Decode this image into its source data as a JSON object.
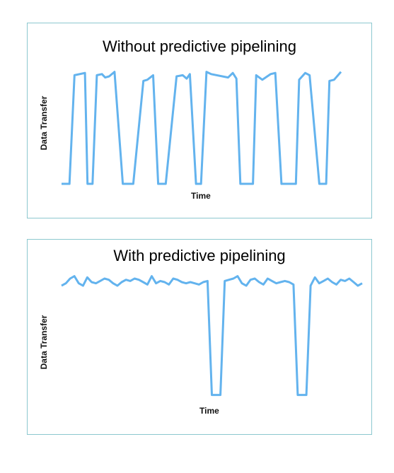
{
  "colors": {
    "line": "#63b3ee",
    "frame": "#8cc8cf"
  },
  "chart_data": [
    {
      "type": "line",
      "title": "Without predictive pipelining",
      "xlabel": "Time",
      "ylabel": "Data Transfer",
      "ylim": [
        0,
        1
      ],
      "grid": false,
      "series": [
        {
          "x": [
            0,
            2.2,
            3.6,
            6.5,
            7.2,
            8.6,
            9.8,
            11.2,
            12.1,
            13.2,
            14.7,
            17.0,
            17.9,
            19.9,
            22.7,
            23.8,
            25.4,
            26.8,
            28.2,
            28.9,
            31.9,
            33.6,
            34.7,
            35.6,
            37.3,
            38.7,
            40.2,
            41.5,
            46.2,
            47.5,
            48.5,
            49.6,
            50.7,
            53.1,
            54.0,
            55.7,
            58.0,
            59.3,
            61.0,
            62.2,
            65.0,
            65.9,
            67.6,
            68.8,
            71.5,
            72.3,
            73.4,
            74.3,
            75.6,
            77.5
          ],
          "y": [
            0,
            0,
            0.96,
            0.98,
            0,
            0,
            0.96,
            0.97,
            0.94,
            0.95,
            0.99,
            0,
            0,
            0,
            0.91,
            0.92,
            0.96,
            0,
            0,
            0,
            0.95,
            0.96,
            0.93,
            0.97,
            0,
            0,
            0.99,
            0.97,
            0.94,
            0.98,
            0.93,
            0,
            0,
            0,
            0.96,
            0.92,
            0.97,
            0.98,
            0,
            0,
            0,
            0.92,
            0.98,
            0.96,
            0,
            0,
            0,
            0.91,
            0.92,
            0.99
          ]
        }
      ]
    },
    {
      "type": "line",
      "title": "With predictive pipelining",
      "xlabel": "Time",
      "ylabel": "Data Transfer",
      "ylim": [
        0,
        1
      ],
      "grid": false,
      "series": [
        {
          "x": [
            0,
            1,
            2,
            3,
            4,
            5,
            6,
            7,
            8,
            9,
            10,
            11,
            12,
            13,
            14,
            15,
            16,
            17,
            18,
            19,
            20,
            21,
            22,
            23,
            24,
            25,
            26,
            27,
            28,
            29,
            30,
            31,
            32,
            33,
            34,
            35,
            36,
            37,
            38,
            39,
            40,
            41,
            42,
            43,
            44,
            45,
            46,
            47,
            48,
            49,
            50,
            51,
            52,
            53,
            54,
            55,
            56,
            57,
            58,
            59,
            60,
            61,
            62,
            63,
            64,
            65,
            66,
            67,
            68,
            69,
            70
          ],
          "y": [
            0.94,
            0.96,
            1.0,
            1.02,
            0.96,
            0.94,
            1.01,
            0.97,
            0.96,
            0.98,
            1.0,
            0.99,
            0.96,
            0.94,
            0.97,
            0.99,
            0.98,
            1.0,
            0.99,
            0.97,
            0.95,
            1.02,
            0.96,
            0.98,
            0.97,
            0.95,
            1.0,
            0.99,
            0.97,
            0.96,
            0.97,
            0.96,
            0.95,
            0.97,
            0.98,
            0.02,
            0.02,
            0.02,
            0.98,
            0.99,
            1.0,
            1.02,
            0.96,
            0.94,
            0.99,
            1.0,
            0.97,
            0.95,
            1.0,
            0.98,
            0.96,
            0.97,
            0.98,
            0.97,
            0.95,
            0.02,
            0.02,
            0.02,
            0.94,
            1.01,
            0.96,
            0.98,
            1.0,
            0.97,
            0.95,
            0.99,
            0.98,
            1.0,
            0.97,
            0.94,
            0.96
          ]
        }
      ]
    }
  ]
}
